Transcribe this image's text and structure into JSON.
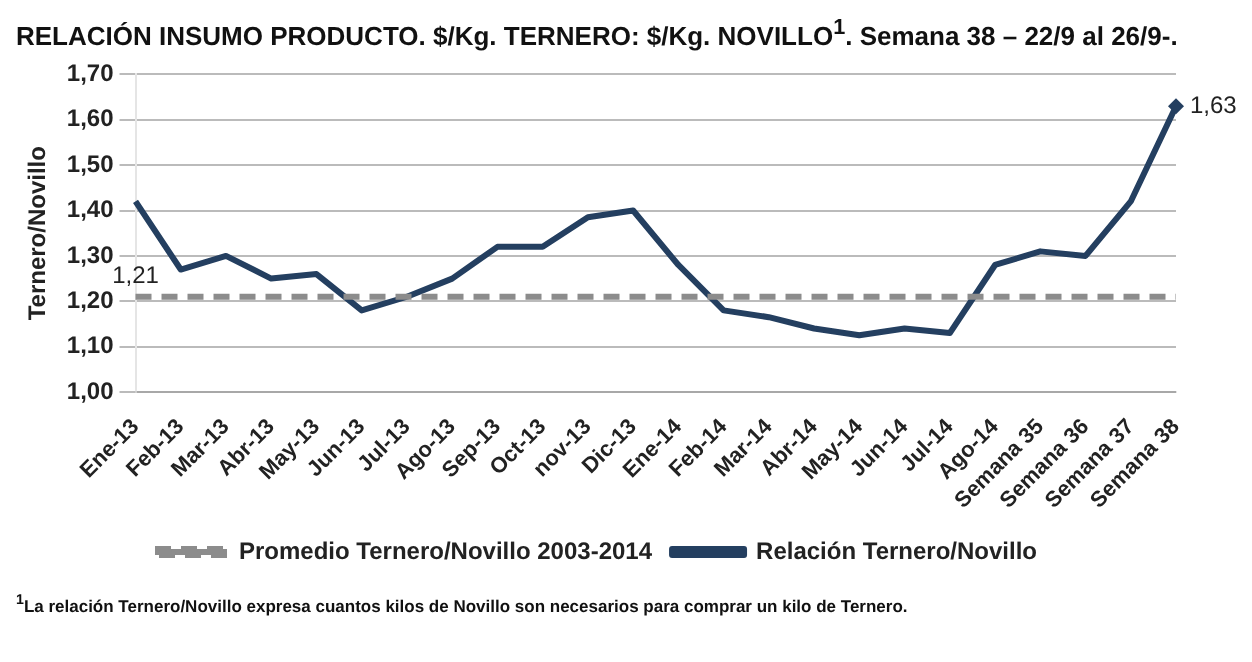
{
  "chart_data": {
    "type": "line",
    "title": "RELACIÓN INSUMO PRODUCTO. $/Kg. TERNERO: $/Kg. NOVILLO$^{1}$. Semana 38 – 22/9 al 26/9-.",
    "ylabel": "Ternero/Novillo",
    "categories": [
      "Ene-13",
      "Feb-13",
      "Mar-13",
      "Abr-13",
      "May-13",
      "Jun-13",
      "Jul-13",
      "Ago-13",
      "Sep-13",
      "Oct-13",
      "nov-13",
      "Dic-13",
      "Ene-14",
      "Feb-14",
      "Mar-14",
      "Abr-14",
      "May-14",
      "Jun-14",
      "Jul-14",
      "Ago-14",
      "Semana 35",
      "Semana 36",
      "Semana 37",
      "Semana 38"
    ],
    "series": [
      {
        "name": "Promedio Ternero/Novillo 2003-2014",
        "color": "#8c8c8c",
        "line_style": "dashed",
        "values": [
          1.21,
          1.21,
          1.21,
          1.21,
          1.21,
          1.21,
          1.21,
          1.21,
          1.21,
          1.21,
          1.21,
          1.21,
          1.21,
          1.21,
          1.21,
          1.21,
          1.21,
          1.21,
          1.21,
          1.21,
          1.21,
          1.21,
          1.21,
          1.21
        ],
        "value_labels": [
          "1,21",
          null,
          null,
          null,
          null,
          null,
          null,
          null,
          null,
          null,
          null,
          null,
          null,
          null,
          null,
          null,
          null,
          null,
          null,
          null,
          null,
          null,
          null,
          null
        ]
      },
      {
        "name": "Relación Ternero/Novillo",
        "color": "#243f60",
        "line_style": "solid",
        "values": [
          1.42,
          1.27,
          1.3,
          1.25,
          1.26,
          1.18,
          1.21,
          1.25,
          1.32,
          1.32,
          1.385,
          1.4,
          1.28,
          1.18,
          1.165,
          1.14,
          1.125,
          1.14,
          1.13,
          1.28,
          1.31,
          1.3,
          1.42,
          1.63
        ],
        "value_labels": [
          null,
          null,
          null,
          null,
          null,
          null,
          null,
          null,
          null,
          null,
          null,
          null,
          null,
          null,
          null,
          null,
          null,
          null,
          null,
          null,
          null,
          null,
          null,
          "1,63"
        ]
      }
    ],
    "ylim": [
      1.0,
      1.7
    ],
    "yticks": [
      {
        "value": 1.0,
        "label": "1,00"
      },
      {
        "value": 1.1,
        "label": "1,10"
      },
      {
        "value": 1.2,
        "label": "1,20"
      },
      {
        "value": 1.3,
        "label": "1,30"
      },
      {
        "value": 1.4,
        "label": "1,40"
      },
      {
        "value": 1.5,
        "label": "1,50"
      },
      {
        "value": 1.6,
        "label": "1,60"
      },
      {
        "value": 1.7,
        "label": "1,70"
      }
    ],
    "grid": "y",
    "legend": "bottom",
    "annotations": [
      "$^{1}$La relación Ternero/Novillo expresa cuantos kilos de Novillo son necesarios para comprar un kilo de Ternero."
    ]
  }
}
